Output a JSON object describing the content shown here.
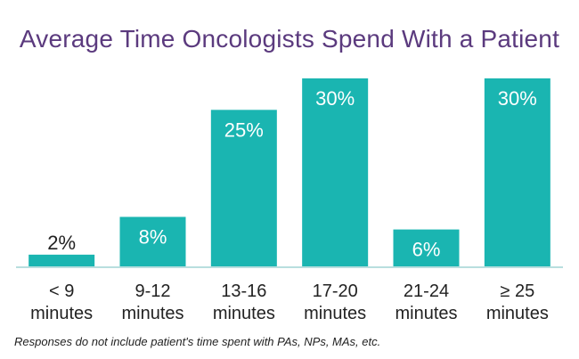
{
  "chart_data": {
    "type": "bar",
    "title": "Average Time Oncologists Spend With a Patient",
    "categories": [
      [
        "< 9",
        "minutes"
      ],
      [
        "9-12",
        "minutes"
      ],
      [
        "13-16",
        "minutes"
      ],
      [
        "17-20",
        "minutes"
      ],
      [
        "21-24",
        "minutes"
      ],
      [
        "≥ 25",
        "minutes"
      ]
    ],
    "values": [
      2,
      8,
      25,
      30,
      6,
      30
    ],
    "data_labels": [
      "2%",
      "8%",
      "25%",
      "30%",
      "6%",
      "30%"
    ],
    "ylim": [
      0,
      30
    ],
    "grid": false,
    "legend": "none",
    "bar_color": "#1ab5b1",
    "axis_color": "#b8dede",
    "title_color": "#5b3a7e"
  },
  "footnote": "Responses do not include patient's time spent with PAs, NPs, MAs, etc."
}
